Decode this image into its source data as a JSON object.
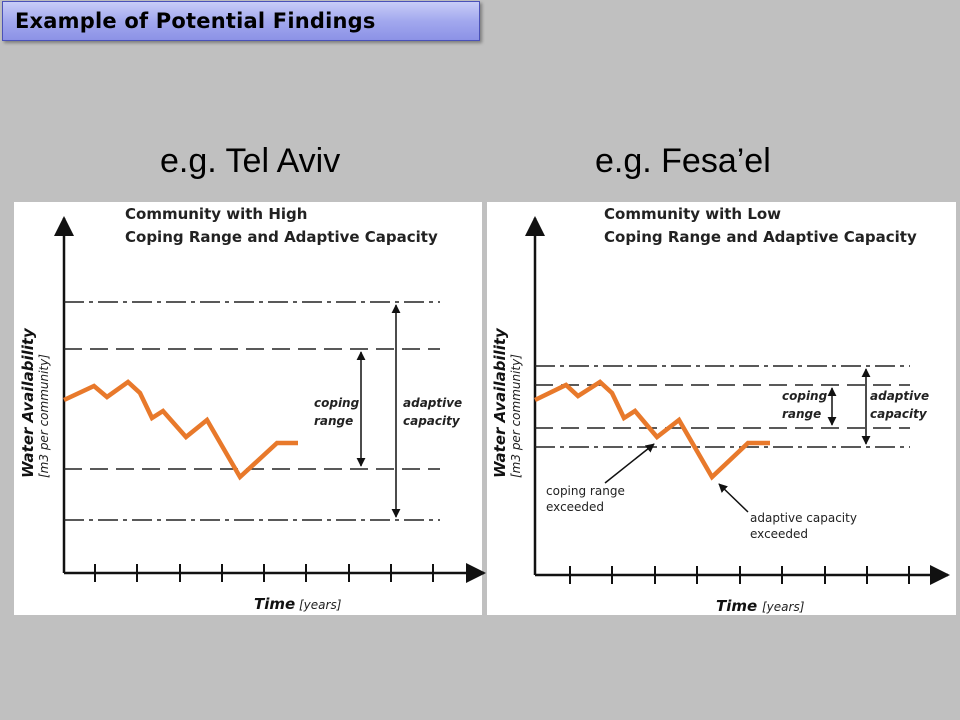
{
  "slide": {
    "title": "Example of Potential Findings"
  },
  "panels": [
    {
      "city_label": "e.g. Tel Aviv",
      "heading_line1": "Community with High",
      "heading_line2": "Coping Range and Adaptive Capacity",
      "y_axis_label": "Water Availability",
      "y_axis_unit": "[m3 per community]",
      "x_axis_label": "Time",
      "x_axis_unit": "[years]",
      "coping_label_line1": "coping",
      "coping_label_line2": "range",
      "adaptive_label_line1": "adaptive",
      "adaptive_label_line2": "capacity"
    },
    {
      "city_label": "e.g. Fesa’el",
      "heading_line1": "Community with Low",
      "heading_line2": "Coping Range and Adaptive Capacity",
      "y_axis_label": "Water Availability",
      "y_axis_unit": "[m3 per community]",
      "x_axis_label": "Time",
      "x_axis_unit": "[years]",
      "coping_label_line1": "coping",
      "coping_label_line2": "range",
      "adaptive_label_line1": "adaptive",
      "adaptive_label_line2": "capacity",
      "note_coping_line1": "coping range",
      "note_coping_line2": "exceeded",
      "note_adaptive_line1": "adaptive capacity",
      "note_adaptive_line2": "exceeded"
    }
  ],
  "colors": {
    "line": "#e8792b",
    "panel_bg": "#ffffff",
    "slide_bg": "#c0c0c0",
    "title_box": "#a2a8ee"
  }
}
